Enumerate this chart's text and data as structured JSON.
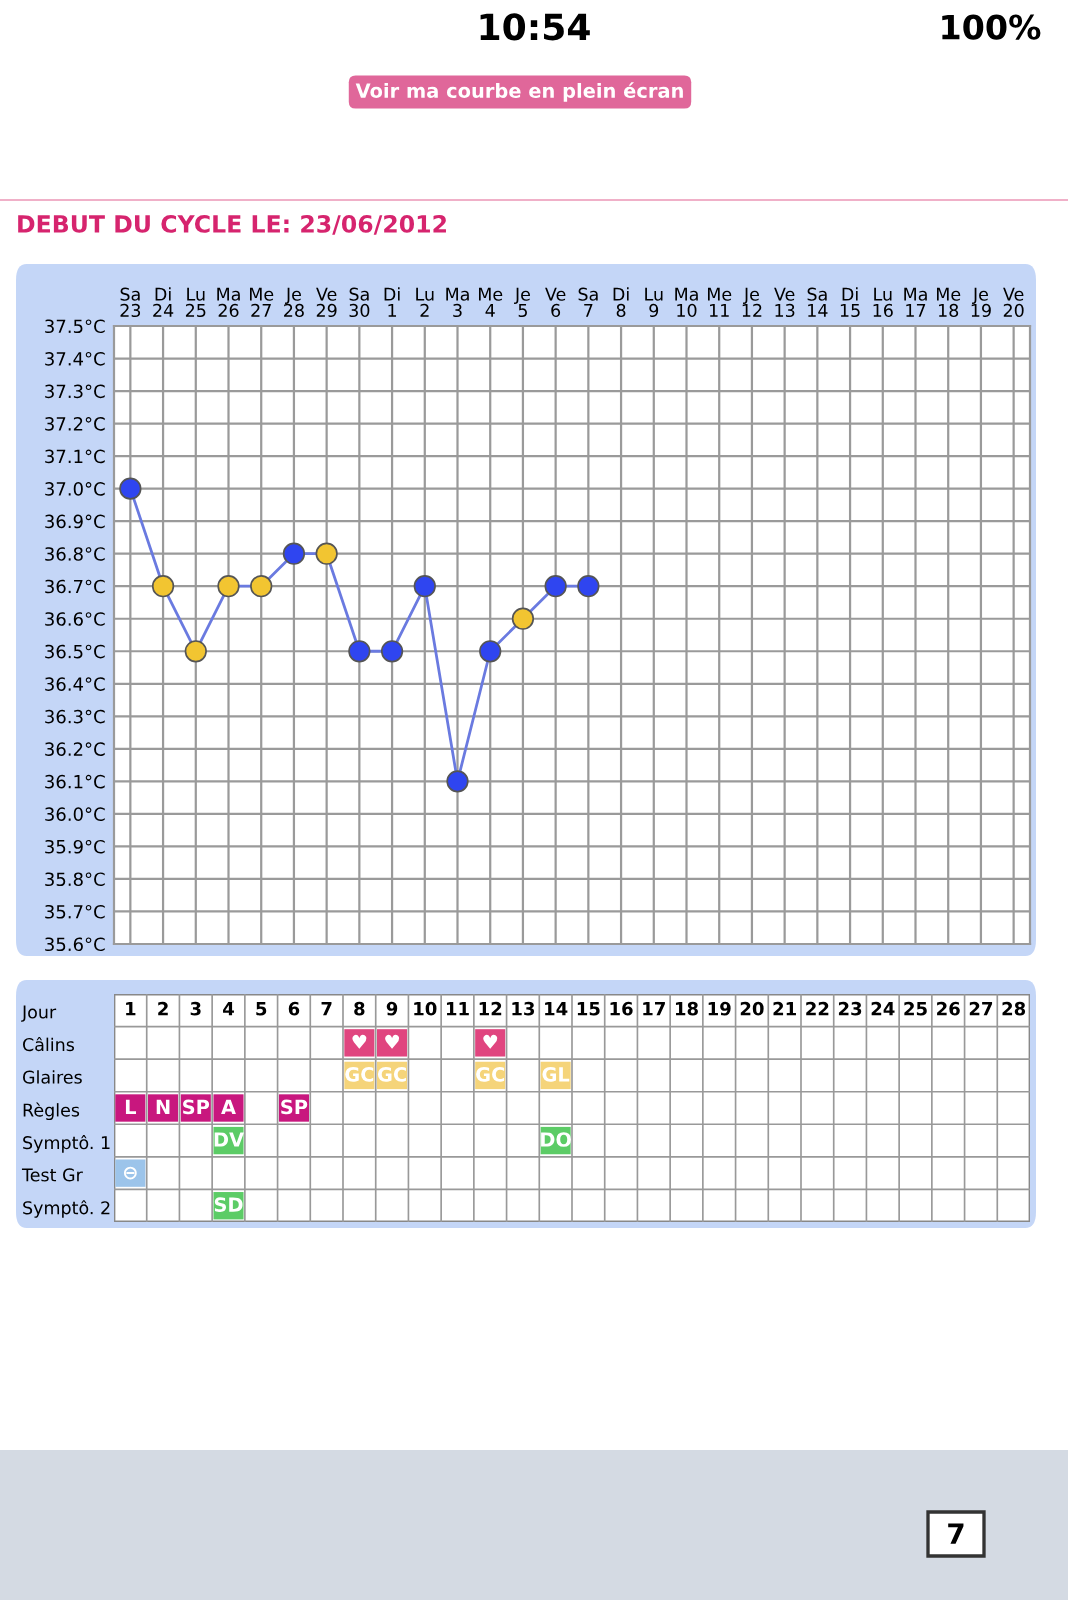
{
  "chart_data": [
    {
      "type": "line",
      "title": "DEBUT DU CYCLE LE: 23/06/2012",
      "categories": [
        "Sa\n23",
        "Di\n24",
        "Lu\n25",
        "Ma\n26",
        "Me\n27",
        "Je\n28",
        "Ve\n29",
        "Sa\n30",
        "Di\n1",
        "Lu\n2",
        "Ma\n3",
        "Me\n4",
        "Je\n5",
        "Ve\n6",
        "Sa\n7",
        "Di\n8",
        "Lu\n9",
        "Ma\n10",
        "Me\n11",
        "Je\n12",
        "Ve\n13",
        "Sa\n14",
        "Di\n15",
        "Lu\n16",
        "Ma\n17",
        "Me\n18",
        "Je\n19",
        "Ve\n20"
      ],
      "series": [
        {
          "color": "#6a7ae0",
          "values": [
            37.0,
            36.7,
            36.5,
            36.7,
            36.7,
            36.8,
            36.8,
            36.5,
            36.5,
            36.7,
            36.1,
            36.5,
            36.6,
            36.7,
            36.7,
            null,
            null,
            null,
            null,
            null,
            null,
            null,
            null,
            null,
            null,
            null,
            null,
            null
          ],
          "colors": [
            "#2f45f0",
            "#f2c531",
            "#f2c531",
            "#f2c531",
            "#f2c531",
            "#2f45f0",
            "#f2c531",
            "#2f45f0",
            "#2f45f0",
            "#2f45f0",
            "#2f45f0",
            "#2f45f0",
            "#f2c531",
            "#2f45f0",
            "#2f45f0",
            null,
            null,
            null,
            null,
            null,
            null,
            null,
            null,
            null,
            null,
            null,
            null,
            null
          ]
        }
      ],
      "ylim": [
        35.6,
        37.5
      ],
      "yticks": [
        {
          "value": 35.6,
          "label": "35.6°C"
        },
        {
          "value": 35.7,
          "label": "35.7°C"
        },
        {
          "value": 35.8,
          "label": "35.8°C"
        },
        {
          "value": 35.9,
          "label": "35.9°C"
        },
        {
          "value": 36.0,
          "label": "36.0°C"
        },
        {
          "value": 36.1,
          "label": "36.1°C"
        },
        {
          "value": 36.2,
          "label": "36.2°C"
        },
        {
          "value": 36.3,
          "label": "36.3°C"
        },
        {
          "value": 36.4,
          "label": "36.4°C"
        },
        {
          "value": 36.5,
          "label": "36.5°C"
        },
        {
          "value": 36.6,
          "label": "36.6°C"
        },
        {
          "value": 36.7,
          "label": "36.7°C"
        },
        {
          "value": 36.8,
          "label": "36.8°C"
        },
        {
          "value": 36.9,
          "label": "36.9°C"
        },
        {
          "value": 37.0,
          "label": "37.0°C"
        },
        {
          "value": 37.1,
          "label": "37.1°C"
        },
        {
          "value": 37.2,
          "label": "37.2°C"
        },
        {
          "value": 37.3,
          "label": "37.3°C"
        },
        {
          "value": 37.4,
          "label": "37.4°C"
        },
        {
          "value": 37.5,
          "label": "37.5°C"
        }
      ],
      "grid": true,
      "marker": "circle",
      "line_style": "solid",
      "annotations": [
        "10:54",
        "100%",
        "Voir ma courbe en plein écran",
        "7"
      ]
    },
    {
      "type": "heatmap",
      "xlabel": "Jour",
      "cells": [
        [
          null,
          null,
          null,
          null,
          null,
          null,
          null,
          null,
          null,
          null,
          null,
          null,
          null,
          null,
          null,
          null,
          null,
          null,
          null,
          null,
          null,
          null,
          null,
          null,
          null,
          null,
          null,
          null
        ],
        [
          null,
          null,
          null,
          null,
          null,
          null,
          null,
          null,
          null,
          null,
          null,
          null,
          null,
          null,
          null,
          null,
          null,
          null,
          null,
          null,
          null,
          null,
          null,
          null,
          null,
          null,
          null,
          null
        ],
        [
          null,
          null,
          null,
          null,
          null,
          null,
          null,
          null,
          null,
          null,
          null,
          null,
          null,
          null,
          null,
          null,
          null,
          null,
          null,
          null,
          null,
          null,
          null,
          null,
          null,
          null,
          null,
          null
        ],
        [
          null,
          null,
          null,
          null,
          null,
          null,
          null,
          null,
          null,
          null,
          null,
          null,
          null,
          null,
          null,
          null,
          null,
          null,
          null,
          null,
          null,
          null,
          null,
          null,
          null,
          null,
          null,
          null
        ],
        [
          null,
          null,
          null,
          null,
          null,
          null,
          null,
          null,
          null,
          null,
          null,
          null,
          null,
          null,
          null,
          null,
          null,
          null,
          null,
          null,
          null,
          null,
          null,
          null,
          null,
          null,
          null,
          null
        ],
        [
          null,
          null,
          null,
          null,
          null,
          null,
          null,
          null,
          null,
          null,
          null,
          null,
          null,
          null,
          null,
          null,
          null,
          null,
          null,
          null,
          null,
          null,
          null,
          null,
          null,
          null,
          null,
          null
        ]
      ],
      "categories": [
        "1",
        "2",
        "3",
        "4",
        "5",
        "6",
        "7",
        "8",
        "9",
        "10",
        "11",
        "12",
        "13",
        "14",
        "15",
        "16",
        "17",
        "18",
        "19",
        "20",
        "21",
        "22",
        "23",
        "24",
        "25",
        "26",
        "27",
        "28"
      ],
      "y_categories": [
        "Câlins",
        "Glaires",
        "Règles",
        "Symptô. 1",
        "Test Gr",
        "Symptô. 2"
      ],
      "colors": [
        "#e0457f",
        "#f5d47a",
        "#c8177e",
        "#5ccc66",
        "#9cc4ea",
        "#5ccc66"
      ],
      "cell_labels": [
        [
          null,
          null,
          null,
          null,
          null,
          null,
          null,
          "♥",
          "♥",
          null,
          null,
          "♥",
          null,
          null,
          null,
          null,
          null,
          null,
          null,
          null,
          null,
          null,
          null,
          null,
          null,
          null,
          null,
          null
        ],
        [
          null,
          null,
          null,
          null,
          null,
          null,
          null,
          "GC",
          "GC",
          null,
          null,
          "GC",
          null,
          "GL",
          null,
          null,
          null,
          null,
          null,
          null,
          null,
          null,
          null,
          null,
          null,
          null,
          null,
          null
        ],
        [
          "L",
          "N",
          "SP",
          "A",
          null,
          "SP",
          null,
          null,
          null,
          null,
          null,
          null,
          null,
          null,
          null,
          null,
          null,
          null,
          null,
          null,
          null,
          null,
          null,
          null,
          null,
          null,
          null,
          null
        ],
        [
          null,
          null,
          null,
          "DV",
          null,
          null,
          null,
          null,
          null,
          null,
          null,
          null,
          null,
          "DO",
          null,
          null,
          null,
          null,
          null,
          null,
          null,
          null,
          null,
          null,
          null,
          null,
          null,
          null
        ],
        [
          "⊖",
          null,
          null,
          null,
          null,
          null,
          null,
          null,
          null,
          null,
          null,
          null,
          null,
          null,
          null,
          null,
          null,
          null,
          null,
          null,
          null,
          null,
          null,
          null,
          null,
          null,
          null,
          null
        ],
        [
          null,
          null,
          null,
          "SD",
          null,
          null,
          null,
          null,
          null,
          null,
          null,
          null,
          null,
          null,
          null,
          null,
          null,
          null,
          null,
          null,
          null,
          null,
          null,
          null,
          null,
          null,
          null,
          null
        ]
      ]
    }
  ]
}
